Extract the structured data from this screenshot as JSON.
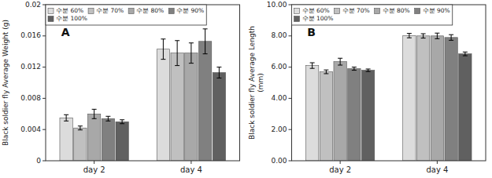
{
  "chart_data": [
    {
      "type": "bar",
      "title": "A",
      "y_label": "Black soldier fly Average Weight (g)",
      "categories": [
        "day 2",
        "day 4"
      ],
      "series": [
        {
          "name": "수분 60%",
          "color": "#dcdcdc",
          "values": [
            0.0055,
            0.0143
          ],
          "errors": [
            0.0004,
            0.0013
          ]
        },
        {
          "name": "수분 70%",
          "color": "#c0c0c0",
          "values": [
            0.0042,
            0.0138
          ],
          "errors": [
            0.00025,
            0.0016
          ]
        },
        {
          "name": "수분 80%",
          "color": "#a8a8a8",
          "values": [
            0.006,
            0.0138
          ],
          "errors": [
            0.0006,
            0.0013
          ]
        },
        {
          "name": "수분 90%",
          "color": "#808080",
          "values": [
            0.0054,
            0.0153
          ],
          "errors": [
            0.0003,
            0.0016
          ]
        },
        {
          "name": "수분 100%",
          "color": "#606060",
          "values": [
            0.005,
            0.0113
          ],
          "errors": [
            0.00025,
            0.0007
          ]
        }
      ],
      "ylim": [
        0,
        0.02
      ],
      "yticks": [
        0,
        0.004,
        0.008,
        0.012,
        0.016,
        0.02
      ],
      "legend": "upper left",
      "grid": false
    },
    {
      "type": "bar",
      "title": "B",
      "y_label": "Black soldier fly Average Length\n(mm)",
      "categories": [
        "day 2",
        "day 4"
      ],
      "series": [
        {
          "name": "수분 60%",
          "color": "#dcdcdc",
          "values": [
            6.1,
            8.02
          ],
          "errors": [
            0.18,
            0.14
          ]
        },
        {
          "name": "수분 70%",
          "color": "#c0c0c0",
          "values": [
            5.7,
            8.0
          ],
          "errors": [
            0.12,
            0.14
          ]
        },
        {
          "name": "수분 80%",
          "color": "#a8a8a8",
          "values": [
            6.35,
            8.0
          ],
          "errors": [
            0.22,
            0.18
          ]
        },
        {
          "name": "수분 90%",
          "color": "#808080",
          "values": [
            5.9,
            7.9
          ],
          "errors": [
            0.1,
            0.18
          ]
        },
        {
          "name": "수분 100%",
          "color": "#606060",
          "values": [
            5.8,
            6.85
          ],
          "errors": [
            0.08,
            0.12
          ]
        }
      ],
      "ylim": [
        0,
        10.0
      ],
      "yticks": [
        {
          "value": 0.0,
          "label": "0.00"
        },
        {
          "value": 2.0,
          "label": "2.00"
        },
        {
          "value": 4.0,
          "label": "4.00"
        },
        {
          "value": 6.0,
          "label": "6.00"
        },
        {
          "value": 8.0,
          "label": "8.00"
        },
        {
          "value": 10.0,
          "label": "10.00"
        }
      ],
      "legend": "upper left",
      "grid": false
    }
  ]
}
